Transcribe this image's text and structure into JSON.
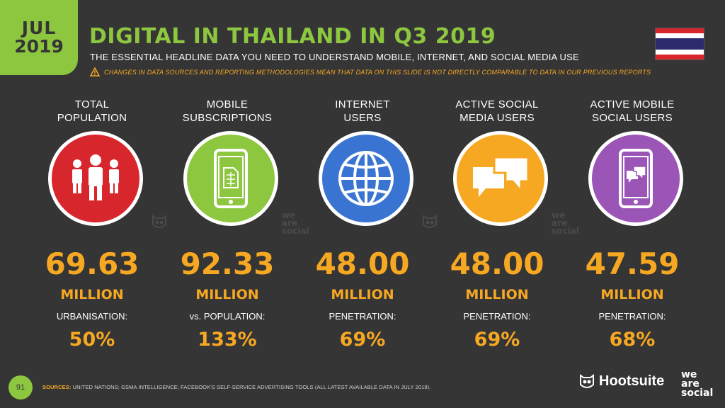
{
  "date": {
    "month": "JUL",
    "year": "2019"
  },
  "title": "DIGITAL IN THAILAND IN Q3 2019",
  "subtitle": "THE ESSENTIAL HEADLINE DATA YOU NEED TO UNDERSTAND MOBILE, INTERNET, AND SOCIAL MEDIA USE",
  "warning": "CHANGES IN DATA SOURCES AND REPORTING METHODOLOGIES MEAN THAT DATA ON THIS SLIDE IS NOT DIRECTLY COMPARABLE TO DATA IN OUR PREVIOUS REPORTS",
  "colors": {
    "background": "#353535",
    "green": "#8dc63f",
    "orange": "#f7a823",
    "red": "#d7262c",
    "blue": "#3a74d3",
    "purple": "#9b55b6"
  },
  "stats": [
    {
      "label1": "TOTAL",
      "label2": "POPULATION",
      "icon": "people-icon",
      "color": "#d7262c",
      "value": "69.63",
      "unit": "MILLION",
      "sublabel": "URBANISATION:",
      "subvalue": "50%"
    },
    {
      "label1": "MOBILE",
      "label2": "SUBSCRIPTIONS",
      "icon": "mobile-sim-icon",
      "color": "#8dc63f",
      "value": "92.33",
      "unit": "MILLION",
      "sublabel": "vs. POPULATION:",
      "subvalue": "133%"
    },
    {
      "label1": "INTERNET",
      "label2": "USERS",
      "icon": "globe-icon",
      "color": "#3a74d3",
      "value": "48.00",
      "unit": "MILLION",
      "sublabel": "PENETRATION:",
      "subvalue": "69%"
    },
    {
      "label1": "ACTIVE SOCIAL",
      "label2": "MEDIA USERS",
      "icon": "chat-bubbles-icon",
      "color": "#f7a823",
      "value": "48.00",
      "unit": "MILLION",
      "sublabel": "PENETRATION:",
      "subvalue": "69%"
    },
    {
      "label1": "ACTIVE MOBILE",
      "label2": "SOCIAL USERS",
      "icon": "mobile-chat-icon",
      "color": "#9b55b6",
      "value": "47.59",
      "unit": "MILLION",
      "sublabel": "PENETRATION:",
      "subvalue": "68%"
    }
  ],
  "watermark": {
    "line1": "we",
    "line2": "are",
    "line3": "social"
  },
  "footer": {
    "page": "91",
    "sources_label": "SOURCES:",
    "sources_text": "UNITED NATIONS; GSMA INTELLIGENCE; FACEBOOK'S SELF-SERVICE ADVERTISING TOOLS (ALL LATEST AVAILABLE DATA IN JULY 2019).",
    "brand1": "Hootsuite",
    "brand2_line1": "we",
    "brand2_line2": "are",
    "brand2_line3": "social"
  }
}
